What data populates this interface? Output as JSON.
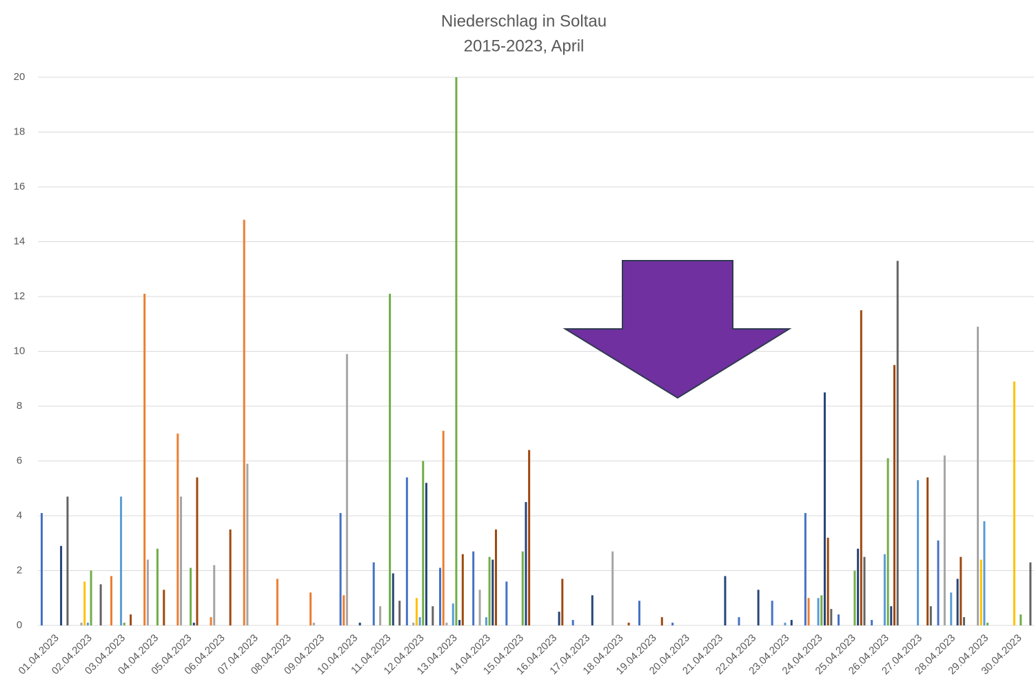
{
  "chart_data": {
    "type": "bar",
    "title": "Niederschlag in Soltau",
    "subtitle": "2015-2023, April",
    "categories": [
      "01.04.2023",
      "02.04.2023",
      "03.04.2023",
      "04.04.2023",
      "05.04.2023",
      "06.04.2023",
      "07.04.2023",
      "08.04.2023",
      "09.04.2023",
      "10.04.2023",
      "11.04.2023",
      "12.04.2023",
      "13.04.2023",
      "14.04.2023",
      "15.04.2023",
      "16.04.2023",
      "17.04.2023",
      "18.04.2023",
      "19.04.2023",
      "20.04.2023",
      "21.04.2023",
      "22.04.2023",
      "23.04.2023",
      "24.04.2023",
      "25.04.2023",
      "26.04.2023",
      "27.04.2023",
      "28.04.2023",
      "29.04.2023",
      "30.04.2023"
    ],
    "series": [
      {
        "color": "#4472c4",
        "values": [
          4.1,
          0,
          0,
          0,
          0,
          0,
          0,
          0,
          0,
          4.1,
          2.3,
          5.4,
          2.1,
          2.7,
          1.6,
          0,
          0.2,
          0,
          0.9,
          0.1,
          0,
          0.3,
          0.9,
          4.1,
          0.4,
          0.2,
          0,
          3.1,
          0,
          0
        ]
      },
      {
        "color": "#ed7d31",
        "values": [
          0,
          0,
          1.8,
          12.1,
          7.0,
          0.3,
          14.8,
          1.7,
          1.2,
          1.1,
          0,
          0,
          7.1,
          0,
          0,
          0,
          0,
          0,
          0,
          0,
          0,
          0,
          0,
          1.0,
          0,
          0,
          0,
          0,
          0,
          0
        ]
      },
      {
        "color": "#a5a5a5",
        "values": [
          0,
          0.1,
          0,
          2.4,
          4.7,
          2.2,
          5.9,
          0,
          0.1,
          9.9,
          0.7,
          0.1,
          0.1,
          1.3,
          0,
          0,
          0,
          2.7,
          0,
          0,
          0,
          0,
          0,
          0,
          0,
          0,
          0,
          6.2,
          10.9,
          0
        ]
      },
      {
        "color": "#ffc000",
        "values": [
          0,
          1.6,
          0,
          0,
          0,
          0,
          0,
          0,
          0,
          0,
          0,
          1.0,
          0,
          0,
          0,
          0,
          0,
          0,
          0,
          0,
          0,
          0,
          0,
          0,
          0,
          0,
          0,
          0,
          2.4,
          8.9
        ]
      },
      {
        "color": "#5b9bd5",
        "values": [
          0,
          0.1,
          4.7,
          0,
          0,
          0,
          0,
          0,
          0,
          0,
          0,
          0.3,
          0.8,
          0.3,
          0,
          0,
          0,
          0,
          0,
          0,
          0,
          0,
          0.1,
          1.0,
          0,
          2.6,
          5.3,
          1.2,
          3.8,
          0
        ]
      },
      {
        "color": "#70ad47",
        "values": [
          0,
          2.0,
          0.1,
          2.8,
          2.1,
          0,
          0,
          0,
          0,
          0,
          12.1,
          6.0,
          20,
          2.5,
          2.7,
          0,
          0,
          0,
          0,
          0,
          0,
          0,
          0,
          1.1,
          2.0,
          6.1,
          0,
          0,
          0.1,
          0.4
        ]
      },
      {
        "color": "#264478",
        "values": [
          2.9,
          0,
          0,
          0,
          0.1,
          0,
          0,
          0,
          0,
          0.1,
          1.9,
          5.2,
          0.2,
          2.4,
          4.5,
          0.5,
          1.1,
          0,
          0,
          0,
          1.8,
          1.3,
          0.2,
          8.5,
          2.8,
          0.7,
          0,
          1.7,
          0,
          0
        ]
      },
      {
        "color": "#9e480e",
        "values": [
          0,
          0,
          0.4,
          1.3,
          5.4,
          3.5,
          0,
          0,
          0,
          0,
          0,
          0,
          2.6,
          3.5,
          6.4,
          1.7,
          0,
          0.1,
          0.3,
          0,
          0,
          0,
          0,
          3.2,
          11.5,
          9.5,
          5.4,
          2.5,
          0,
          0
        ]
      },
      {
        "color": "#636363",
        "values": [
          4.7,
          1.5,
          0,
          0,
          0,
          0,
          0,
          0,
          0,
          0,
          0.9,
          0.7,
          0,
          0,
          0,
          0,
          0,
          0,
          0,
          0,
          0,
          0,
          0,
          0.6,
          2.5,
          13.3,
          0.7,
          0.3,
          0,
          2.3
        ]
      }
    ],
    "ylim": [
      0,
      20
    ],
    "yticks": [
      0,
      2,
      4,
      6,
      8,
      10,
      12,
      14,
      16,
      18,
      20
    ],
    "grid": true
  }
}
